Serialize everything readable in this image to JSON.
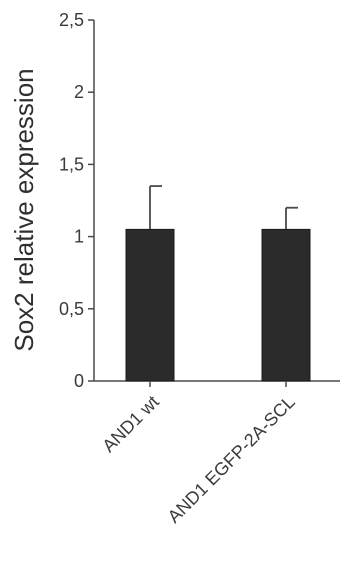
{
  "chart_data": {
    "type": "bar",
    "title": "",
    "xlabel": "",
    "ylabel": "Sox2 relative expression",
    "categories": [
      "AND1 wt",
      "AND1 EGFP-2A-SCL"
    ],
    "values": [
      1.05,
      1.05
    ],
    "error_bars": [
      0.3,
      0.15
    ],
    "ylim": [
      0,
      2.5
    ],
    "y_ticks": [
      0,
      0.5,
      1,
      1.5,
      2,
      2.5
    ],
    "y_tick_labels": [
      "0",
      "0,5",
      "1",
      "1,5",
      "2",
      "2,5"
    ],
    "grid": false,
    "legend": "none",
    "colors": {
      "bar": "#2b2b2b",
      "axis": "#4a4a4a"
    }
  }
}
